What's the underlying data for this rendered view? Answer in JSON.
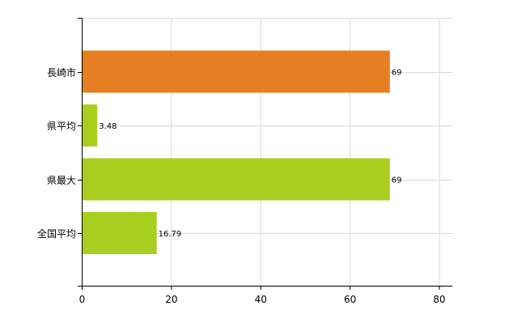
{
  "chart_data": {
    "type": "bar",
    "orientation": "horizontal",
    "categories": [
      "長崎市",
      "県平均",
      "県最大",
      "全国平均"
    ],
    "values": [
      69,
      3.48,
      69,
      16.79
    ],
    "data_labels": [
      "69",
      "3.48",
      "69",
      "16.79"
    ],
    "bar_colors": [
      "#e67e22",
      "#a8c e1f",
      "#a8ce1f",
      "#a8ce1f"
    ],
    "x_ticks": [
      0,
      20,
      40,
      60,
      80
    ],
    "xlim": [
      0,
      83
    ],
    "title": "",
    "xlabel": "",
    "ylabel": "",
    "grid": true,
    "legend": "none"
  }
}
